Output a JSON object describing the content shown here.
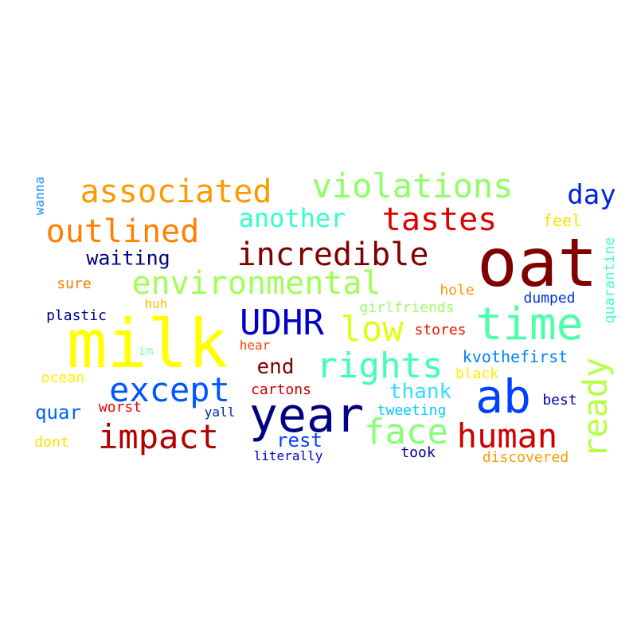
{
  "words": {
    "milk": {
      "text": "milk",
      "color": "#ffff00"
    },
    "oat": {
      "text": "oat",
      "color": "#800000"
    },
    "year": {
      "text": "year",
      "color": "#000080"
    },
    "time": {
      "text": "time",
      "color": "#4dffaa"
    },
    "ab": {
      "text": "ab",
      "color": "#0040ff"
    },
    "environmental": {
      "text": "environmental",
      "color": "#a0ff57"
    },
    "incredible": {
      "text": "incredible",
      "color": "#800000"
    },
    "associated": {
      "text": "associated",
      "color": "#ff9900"
    },
    "violations": {
      "text": "violations",
      "color": "#90ff66"
    },
    "outlined": {
      "text": "outlined",
      "color": "#ff8000"
    },
    "tastes": {
      "text": "tastes",
      "color": "#dd0000"
    },
    "another": {
      "text": "another",
      "color": "#33ffcc"
    },
    "rights": {
      "text": "rights",
      "color": "#40ffb7"
    },
    "udhr": {
      "text": "UDHR",
      "color": "#0000cc"
    },
    "low": {
      "text": "low",
      "color": "#ddff11"
    },
    "except": {
      "text": "except",
      "color": "#0055ff"
    },
    "impact": {
      "text": "impact",
      "color": "#b00000"
    },
    "human": {
      "text": "human",
      "color": "#cc0000"
    },
    "face": {
      "text": "face",
      "color": "#88ff77"
    },
    "ready": {
      "text": "ready",
      "color": "#b6ff44"
    },
    "day": {
      "text": "day",
      "color": "#0022dd"
    },
    "waiting": {
      "text": "waiting",
      "color": "#000080"
    },
    "end": {
      "text": "end",
      "color": "#800000"
    },
    "thank": {
      "text": "thank",
      "color": "#33ddff"
    },
    "kvothefirst": {
      "text": "kvothefirst",
      "color": "#0080ff"
    },
    "quar": {
      "text": "quar",
      "color": "#0060ff"
    },
    "rest": {
      "text": "rest",
      "color": "#1040ff"
    },
    "quarantine": {
      "text": "quarantine",
      "color": "#44ffcc"
    },
    "feel": {
      "text": "feel",
      "color": "#ffdd00"
    },
    "wanna": {
      "text": "wanna",
      "color": "#1090ff"
    },
    "sure": {
      "text": "sure",
      "color": "#ff7700"
    },
    "hole": {
      "text": "hole",
      "color": "#ff9900"
    },
    "dumped": {
      "text": "dumped",
      "color": "#0030dd"
    },
    "plastic": {
      "text": "plastic",
      "color": "#000090"
    },
    "huh": {
      "text": "huh",
      "color": "#ffbb00"
    },
    "girlfriends": {
      "text": "girlfriends",
      "color": "#99ff66"
    },
    "stores": {
      "text": "stores",
      "color": "#ee1100"
    },
    "im": {
      "text": "im",
      "color": "#88ffaa"
    },
    "hear": {
      "text": "hear",
      "color": "#ff4400"
    },
    "ocean": {
      "text": "ocean",
      "color": "#ffee00"
    },
    "black": {
      "text": "black",
      "color": "#ffee00"
    },
    "cartons": {
      "text": "cartons",
      "color": "#cc0000"
    },
    "worst": {
      "text": "worst",
      "color": "#ee0000"
    },
    "yall": {
      "text": "yall",
      "color": "#0020aa"
    },
    "tweeting": {
      "text": "tweeting",
      "color": "#00ccff"
    },
    "best": {
      "text": "best",
      "color": "#0000aa"
    },
    "dont": {
      "text": "dont",
      "color": "#ffdd00"
    },
    "literally": {
      "text": "literally",
      "color": "#0000cc"
    },
    "took": {
      "text": "took",
      "color": "#000099"
    },
    "discovered": {
      "text": "discovered",
      "color": "#ff9900"
    }
  }
}
